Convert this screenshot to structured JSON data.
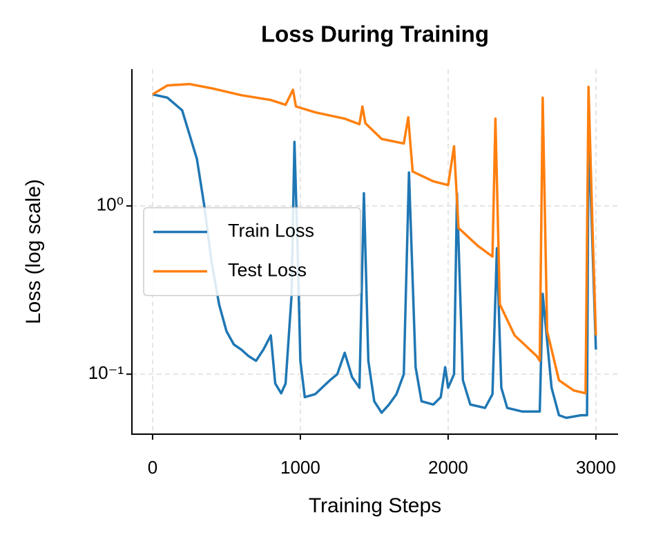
{
  "chart_data": {
    "type": "line",
    "title": "Loss During Training",
    "xlabel": "Training Steps",
    "ylabel": "Loss (log scale)",
    "yscale": "log",
    "grid": true,
    "legend": "center left",
    "xlim": [
      -140,
      3150
    ],
    "ylim": [
      0.044,
      6.5
    ],
    "xticks": [
      0,
      1000,
      2000,
      3000
    ],
    "yticks": [
      {
        "value": 0.1,
        "label": "10⁻¹"
      },
      {
        "value": 1,
        "label": "10⁰"
      }
    ],
    "series": [
      {
        "name": "Train Loss",
        "color": "#1f77b4",
        "x": [
          0,
          100,
          200,
          300,
          350,
          400,
          450,
          500,
          550,
          600,
          650,
          700,
          750,
          800,
          830,
          870,
          900,
          940,
          960,
          980,
          1000,
          1030,
          1100,
          1200,
          1250,
          1300,
          1350,
          1400,
          1430,
          1460,
          1500,
          1550,
          1600,
          1650,
          1700,
          1735,
          1780,
          1820,
          1900,
          1950,
          1980,
          2000,
          2040,
          2060,
          2100,
          2150,
          2250,
          2300,
          2330,
          2360,
          2400,
          2500,
          2600,
          2620,
          2640,
          2700,
          2750,
          2800,
          2900,
          2940,
          2950,
          3000
        ],
        "values": [
          4.6,
          4.4,
          3.7,
          1.9,
          1.0,
          0.46,
          0.26,
          0.18,
          0.15,
          0.14,
          0.128,
          0.12,
          0.14,
          0.17,
          0.088,
          0.077,
          0.088,
          0.29,
          2.4,
          0.61,
          0.12,
          0.073,
          0.076,
          0.092,
          0.1,
          0.134,
          0.096,
          0.083,
          1.19,
          0.12,
          0.069,
          0.059,
          0.066,
          0.076,
          0.1,
          1.58,
          0.11,
          0.069,
          0.066,
          0.073,
          0.11,
          0.083,
          0.1,
          1.19,
          0.092,
          0.066,
          0.063,
          0.076,
          0.56,
          0.083,
          0.063,
          0.06,
          0.06,
          0.06,
          0.3,
          0.083,
          0.057,
          0.055,
          0.057,
          0.057,
          3.0,
          0.14
        ]
      },
      {
        "name": "Test Loss",
        "color": "#ff7f0e",
        "x": [
          0,
          100,
          250,
          400,
          600,
          800,
          900,
          950,
          970,
          1100,
          1300,
          1400,
          1420,
          1440,
          1550,
          1700,
          1730,
          1760,
          1900,
          2000,
          2040,
          2070,
          2200,
          2300,
          2320,
          2350,
          2450,
          2600,
          2620,
          2640,
          2670,
          2750,
          2850,
          2930,
          2950,
          2980,
          3000
        ],
        "values": [
          4.6,
          5.2,
          5.3,
          5.0,
          4.55,
          4.26,
          3.99,
          4.9,
          3.9,
          3.6,
          3.3,
          3.06,
          3.9,
          3.1,
          2.5,
          2.35,
          3.36,
          1.6,
          1.4,
          1.33,
          2.26,
          0.74,
          0.58,
          0.5,
          3.3,
          0.26,
          0.17,
          0.128,
          0.12,
          4.4,
          0.18,
          0.092,
          0.08,
          0.077,
          5.1,
          0.6,
          0.17
        ]
      }
    ]
  }
}
